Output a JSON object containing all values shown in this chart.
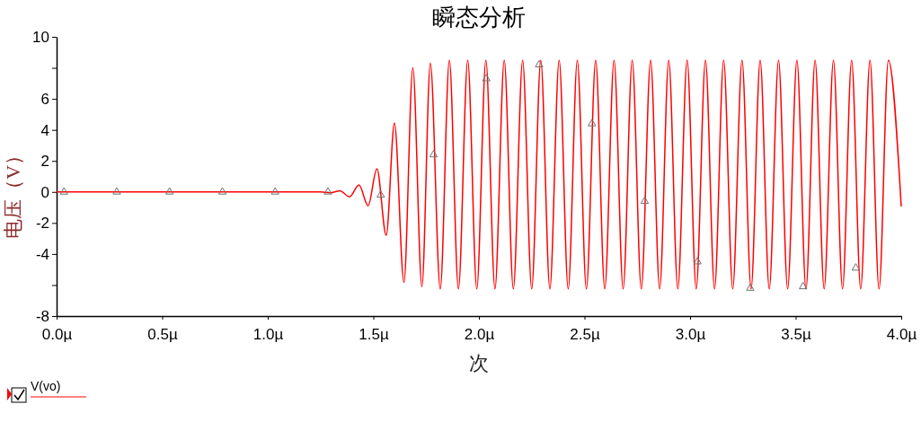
{
  "chart_data": {
    "type": "line",
    "title": "瞬态分析",
    "xlabel": "次",
    "ylabel": "电压（V）",
    "xlim": [
      0,
      4
    ],
    "xticks": [
      {
        "value": 0,
        "label": "0.0µ"
      },
      {
        "value": 0.5,
        "label": "0.5µ"
      },
      {
        "value": 1,
        "label": "1.0µ"
      },
      {
        "value": 1.5,
        "label": "1.5µ"
      },
      {
        "value": 2,
        "label": "2.0µ"
      },
      {
        "value": 2.5,
        "label": "2.5µ"
      },
      {
        "value": 3,
        "label": "3.0µ"
      },
      {
        "value": 3.5,
        "label": "3.5µ"
      },
      {
        "value": 4,
        "label": "4.0µ"
      }
    ],
    "ylim": [
      -8,
      10
    ],
    "yticks": [
      {
        "value": -8,
        "label": "-8"
      },
      {
        "value": -6,
        "label": null
      },
      -4,
      -2,
      0,
      2,
      4,
      6,
      {
        "value": 8,
        "label": null
      },
      10
    ],
    "grid": false,
    "legend": "bottom left",
    "line_style": "solid",
    "series": [
      {
        "name": "V(vo)",
        "color": "#ff0000",
        "marker": "none",
        "x": [
          0,
          1.25,
          1.3,
          1.341,
          1.387,
          1.432,
          1.475,
          1.517,
          1.561,
          1.6,
          1.645,
          1.687,
          1.73,
          1.77,
          1.817,
          1.86,
          1.903,
          1.947,
          1.99,
          2.033,
          2.076,
          2.12,
          2.163,
          2.207,
          2.25,
          2.293,
          2.336,
          2.38,
          2.423,
          2.466,
          2.509,
          2.553,
          2.596,
          2.64,
          2.683,
          2.726,
          2.769,
          2.813,
          2.856,
          2.899,
          2.942,
          2.986,
          3.029,
          3.073,
          3.116,
          3.159,
          3.202,
          3.246,
          3.289,
          3.332,
          3.375,
          3.419,
          3.462,
          3.506,
          3.549,
          3.592,
          3.635,
          3.679,
          3.722,
          3.765,
          3.808,
          3.852,
          3.895,
          3.939,
          4
        ],
        "values": [
          0,
          0,
          -0.05,
          0.08,
          -0.31,
          0.45,
          -0.89,
          1.49,
          -2.79,
          4.44,
          -5.83,
          8.0,
          -6.1,
          8.3,
          -6.25,
          8.5,
          -6.25,
          8.5,
          -6.25,
          8.5,
          -6.25,
          8.5,
          -6.25,
          8.5,
          -6.25,
          8.5,
          -6.25,
          8.5,
          -6.25,
          8.5,
          -6.25,
          8.5,
          -6.25,
          8.5,
          -6.25,
          8.5,
          -6.25,
          8.5,
          -6.25,
          8.5,
          -6.25,
          8.5,
          -6.25,
          8.5,
          -6.25,
          8.5,
          -6.25,
          8.5,
          -6.25,
          8.5,
          -6.25,
          8.5,
          -6.25,
          8.5,
          -6.25,
          8.5,
          -6.25,
          8.5,
          -6.25,
          8.5,
          -6.25,
          8.5,
          -6.25,
          8.5,
          -0.93
        ]
      },
      {
        "type": "scatter",
        "color": "#707070",
        "marker": "triangle",
        "x": [
          0.035,
          0.285,
          0.535,
          0.785,
          1.035,
          1.285,
          1.535,
          1.785,
          2.035,
          2.285,
          2.535,
          2.785,
          3.035,
          3.285,
          3.535,
          3.785
        ],
        "values": [
          0,
          0,
          0,
          0,
          0,
          0,
          -0.2,
          2.4,
          7.3,
          8.2,
          4.4,
          -0.6,
          -4.5,
          -6.2,
          -6.1,
          -4.9
        ]
      }
    ]
  }
}
